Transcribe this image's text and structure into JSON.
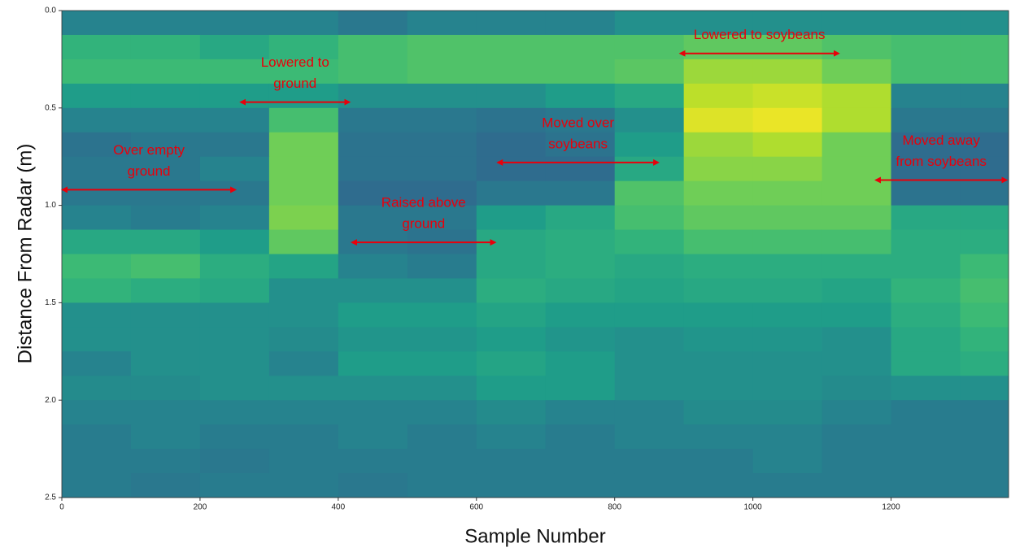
{
  "chart_data": {
    "type": "heatmap",
    "x_label": "Sample Number",
    "y_label": "Distance From Radar (m)",
    "xlim": [
      0,
      1370
    ],
    "ylim": [
      0,
      2.5
    ],
    "y_inverted": true,
    "colormap": "viridis",
    "xticks": [
      0,
      200,
      400,
      600,
      800,
      1000,
      1200
    ],
    "yticks": [
      {
        "value": 0,
        "label": "0.0"
      },
      0.5,
      {
        "value": 1,
        "label": "1.0"
      },
      1.5,
      {
        "value": 2,
        "label": "2.0"
      },
      2.5
    ],
    "x_bins": [
      0,
      100,
      200,
      300,
      400,
      500,
      600,
      700,
      800,
      900,
      1000,
      1100,
      1200,
      1300,
      1370
    ],
    "y_bins": [
      0,
      0.125,
      0.25,
      0.375,
      0.5,
      0.625,
      0.75,
      0.875,
      1,
      1.125,
      1.25,
      1.375,
      1.5,
      1.625,
      1.75,
      1.875,
      2,
      2.125,
      2.25,
      2.375,
      2.5
    ],
    "z": [
      [
        0.45,
        0.45,
        0.45,
        0.45,
        0.4,
        0.45,
        0.45,
        0.45,
        0.5,
        0.5,
        0.5,
        0.5,
        0.5,
        0.5
      ],
      [
        0.65,
        0.65,
        0.6,
        0.65,
        0.7,
        0.72,
        0.72,
        0.72,
        0.72,
        0.75,
        0.75,
        0.72,
        0.7,
        0.7
      ],
      [
        0.68,
        0.68,
        0.68,
        0.68,
        0.7,
        0.72,
        0.72,
        0.72,
        0.74,
        0.85,
        0.85,
        0.78,
        0.7,
        0.7
      ],
      [
        0.55,
        0.55,
        0.55,
        0.55,
        0.5,
        0.5,
        0.5,
        0.55,
        0.6,
        0.9,
        0.92,
        0.88,
        0.45,
        0.45
      ],
      [
        0.45,
        0.45,
        0.45,
        0.7,
        0.4,
        0.4,
        0.38,
        0.4,
        0.5,
        0.95,
        0.97,
        0.88,
        0.4,
        0.4
      ],
      [
        0.38,
        0.4,
        0.4,
        0.78,
        0.38,
        0.38,
        0.35,
        0.38,
        0.55,
        0.85,
        0.88,
        0.78,
        0.35,
        0.35
      ],
      [
        0.4,
        0.4,
        0.45,
        0.78,
        0.38,
        0.38,
        0.35,
        0.35,
        0.6,
        0.82,
        0.82,
        0.78,
        0.35,
        0.35
      ],
      [
        0.4,
        0.4,
        0.4,
        0.78,
        0.35,
        0.35,
        0.4,
        0.4,
        0.72,
        0.78,
        0.78,
        0.78,
        0.38,
        0.38
      ],
      [
        0.45,
        0.42,
        0.45,
        0.8,
        0.4,
        0.4,
        0.55,
        0.6,
        0.7,
        0.75,
        0.75,
        0.75,
        0.6,
        0.6
      ],
      [
        0.6,
        0.6,
        0.55,
        0.75,
        0.4,
        0.38,
        0.6,
        0.62,
        0.65,
        0.7,
        0.7,
        0.7,
        0.62,
        0.62
      ],
      [
        0.68,
        0.7,
        0.62,
        0.58,
        0.45,
        0.42,
        0.6,
        0.62,
        0.6,
        0.62,
        0.62,
        0.62,
        0.62,
        0.68
      ],
      [
        0.65,
        0.62,
        0.6,
        0.5,
        0.5,
        0.5,
        0.62,
        0.6,
        0.58,
        0.6,
        0.6,
        0.58,
        0.65,
        0.7
      ],
      [
        0.5,
        0.5,
        0.5,
        0.5,
        0.55,
        0.55,
        0.58,
        0.55,
        0.55,
        0.55,
        0.55,
        0.55,
        0.62,
        0.68
      ],
      [
        0.5,
        0.5,
        0.5,
        0.48,
        0.52,
        0.52,
        0.55,
        0.52,
        0.5,
        0.52,
        0.52,
        0.5,
        0.6,
        0.65
      ],
      [
        0.45,
        0.5,
        0.5,
        0.45,
        0.55,
        0.55,
        0.58,
        0.55,
        0.5,
        0.5,
        0.5,
        0.5,
        0.6,
        0.62
      ],
      [
        0.48,
        0.48,
        0.5,
        0.5,
        0.5,
        0.5,
        0.55,
        0.55,
        0.5,
        0.5,
        0.5,
        0.48,
        0.5,
        0.5
      ],
      [
        0.45,
        0.45,
        0.45,
        0.45,
        0.45,
        0.45,
        0.48,
        0.45,
        0.45,
        0.48,
        0.48,
        0.45,
        0.42,
        0.42
      ],
      [
        0.42,
        0.45,
        0.42,
        0.42,
        0.45,
        0.42,
        0.45,
        0.42,
        0.45,
        0.45,
        0.45,
        0.42,
        0.42,
        0.42
      ],
      [
        0.42,
        0.42,
        0.4,
        0.42,
        0.42,
        0.42,
        0.42,
        0.42,
        0.42,
        0.42,
        0.45,
        0.42,
        0.42,
        0.42
      ],
      [
        0.42,
        0.4,
        0.42,
        0.42,
        0.4,
        0.42,
        0.42,
        0.42,
        0.42,
        0.42,
        0.42,
        0.42,
        0.42,
        0.42
      ]
    ],
    "annotation_color": "#e8000b",
    "annotations": [
      {
        "text": [
          "Over empty",
          "ground"
        ],
        "x": [
          0,
          252
        ],
        "y": 0.92
      },
      {
        "text": [
          "Lowered to",
          "ground"
        ],
        "x": [
          258,
          417
        ],
        "y": 0.47
      },
      {
        "text": [
          "Raised above",
          "ground"
        ],
        "x": [
          419,
          628
        ],
        "y": 1.19
      },
      {
        "text": [
          "Moved over",
          "soybeans"
        ],
        "x": [
          630,
          864
        ],
        "y": 0.78
      },
      {
        "text": [
          "Lowered to soybeans"
        ],
        "x": [
          894,
          1125
        ],
        "y": 0.22
      },
      {
        "text": [
          "Moved away",
          "from soybeans"
        ],
        "x": [
          1177,
          1368
        ],
        "y": 0.87
      }
    ]
  }
}
